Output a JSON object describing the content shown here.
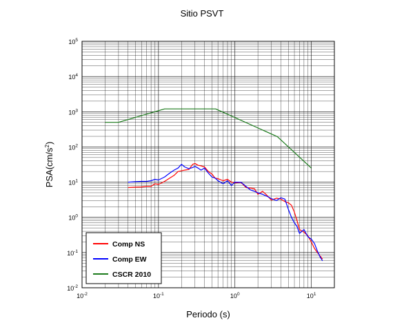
{
  "chart_data": {
    "type": "line",
    "title": "Sitio PSVT",
    "xlabel": "Periodo (s)",
    "ylabel_base": "PSA(cm/s",
    "ylabel_exp": "2",
    "ylabel_close": ")",
    "x_scale": "log",
    "y_scale": "log",
    "xlim": [
      0.01,
      20
    ],
    "ylim": [
      0.01,
      100000
    ],
    "x_tick_labels": [
      {
        "base": "10",
        "exp": "-2",
        "value": 0.01
      },
      {
        "base": "10",
        "exp": "-1",
        "value": 0.1
      },
      {
        "base": "10",
        "exp": "0",
        "value": 1
      },
      {
        "base": "10",
        "exp": "1",
        "value": 10
      }
    ],
    "y_tick_labels": [
      {
        "base": "10",
        "exp": "-2",
        "value": 0.01
      },
      {
        "base": "10",
        "exp": "-1",
        "value": 0.1
      },
      {
        "base": "10",
        "exp": "0",
        "value": 1
      },
      {
        "base": "10",
        "exp": "1",
        "value": 10
      },
      {
        "base": "10",
        "exp": "2",
        "value": 100
      },
      {
        "base": "10",
        "exp": "3",
        "value": 1000
      },
      {
        "base": "10",
        "exp": "4",
        "value": 10000
      },
      {
        "base": "10",
        "exp": "5",
        "value": 100000
      }
    ],
    "grid": true,
    "legend_position": "bottom-left",
    "series": [
      {
        "name": "Comp NS",
        "color": "#ff0000",
        "x": [
          0.04,
          0.05,
          0.06,
          0.07,
          0.08,
          0.09,
          0.1,
          0.12,
          0.14,
          0.16,
          0.18,
          0.2,
          0.22,
          0.25,
          0.28,
          0.3,
          0.33,
          0.36,
          0.4,
          0.45,
          0.5,
          0.55,
          0.6,
          0.7,
          0.8,
          0.9,
          1.0,
          1.2,
          1.4,
          1.6,
          1.8,
          2.0,
          2.3,
          2.6,
          3.0,
          3.5,
          4.0,
          4.5,
          5.0,
          5.5,
          6.0,
          6.5,
          7.0,
          8.0,
          9.0,
          10.0,
          11.0,
          12.0,
          13.0,
          14.0
        ],
        "y": [
          7.0,
          7.2,
          7.3,
          7.6,
          7.6,
          9.0,
          8.6,
          10.5,
          13.0,
          15.5,
          20.0,
          21.0,
          22.0,
          23.0,
          32.0,
          34.0,
          30.0,
          29.0,
          27.0,
          20.0,
          17.0,
          13.0,
          12.5,
          11.0,
          12.0,
          10.0,
          9.5,
          9.8,
          7.0,
          6.8,
          6.5,
          4.5,
          5.5,
          4.3,
          3.1,
          3.5,
          3.3,
          2.8,
          2.6,
          2.2,
          1.4,
          0.8,
          0.45,
          0.38,
          0.3,
          0.2,
          0.13,
          0.1,
          0.08,
          0.065
        ]
      },
      {
        "name": "Comp EW",
        "color": "#0000ff",
        "x": [
          0.04,
          0.05,
          0.06,
          0.07,
          0.08,
          0.09,
          0.1,
          0.12,
          0.14,
          0.16,
          0.18,
          0.2,
          0.22,
          0.25,
          0.28,
          0.3,
          0.33,
          0.36,
          0.4,
          0.45,
          0.5,
          0.55,
          0.6,
          0.7,
          0.8,
          0.9,
          1.0,
          1.2,
          1.4,
          1.6,
          1.8,
          2.0,
          2.3,
          2.6,
          3.0,
          3.5,
          4.0,
          4.5,
          5.0,
          5.5,
          6.0,
          6.5,
          7.0,
          8.0,
          9.0,
          10.0,
          11.0,
          12.0,
          13.0,
          14.0
        ],
        "y": [
          10.0,
          10.3,
          10.5,
          10.5,
          11.0,
          12.0,
          11.5,
          14.0,
          18.0,
          22.0,
          25.0,
          32.0,
          27.0,
          24.0,
          26.0,
          28.0,
          25.0,
          22.0,
          25.0,
          18.0,
          14.0,
          13.0,
          11.0,
          9.0,
          11.0,
          8.0,
          10.0,
          10.0,
          7.5,
          6.0,
          5.5,
          5.0,
          4.5,
          4.0,
          3.4,
          3.0,
          3.6,
          3.3,
          1.7,
          1.0,
          0.7,
          0.55,
          0.35,
          0.45,
          0.28,
          0.24,
          0.18,
          0.11,
          0.075,
          0.058
        ]
      },
      {
        "name": "CSCR 2010",
        "color": "#1a7a1a",
        "x": [
          0.02,
          0.03,
          0.12,
          0.56,
          3.6,
          10.0
        ],
        "y": [
          500,
          500,
          1200,
          1200,
          195,
          25
        ]
      }
    ]
  }
}
